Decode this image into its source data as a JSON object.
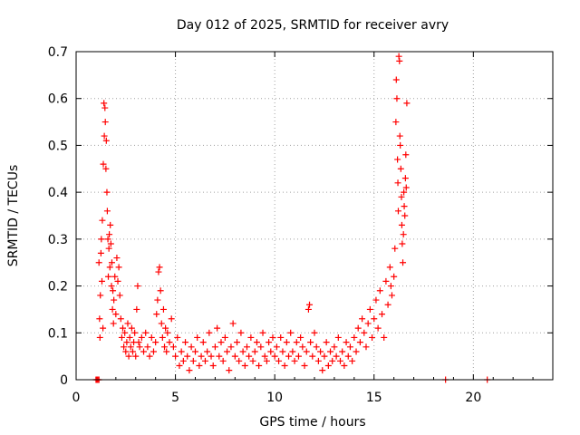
{
  "chart_data": {
    "type": "scatter",
    "title": "Day 012 of 2025, SRMTID for receiver avry",
    "xlabel": "GPS time / hours",
    "ylabel": "SRMTID / TECUs",
    "xlim": [
      0,
      24
    ],
    "ylim": [
      0,
      0.7
    ],
    "xticks": [
      0,
      5,
      10,
      15,
      20
    ],
    "xtick_labels": [
      "0",
      "5",
      "10",
      "15",
      "20"
    ],
    "yticks": [
      0,
      0.1,
      0.2,
      0.3,
      0.4,
      0.5,
      0.6,
      0.7
    ],
    "ytick_labels": [
      "0",
      "0.1",
      "0.2",
      "0.3",
      "0.4",
      "0.5",
      "0.6",
      "0.7"
    ],
    "grid": true,
    "marker": "plus",
    "series": [
      {
        "name": "SRMTID",
        "color": "#ff0000",
        "points": [
          [
            1.0,
            0.0
          ],
          [
            1.05,
            0.0
          ],
          [
            1.1,
            0.0
          ],
          [
            1.15,
            0.0
          ],
          [
            1.15,
            0.25
          ],
          [
            1.18,
            0.13
          ],
          [
            1.2,
            0.09
          ],
          [
            1.22,
            0.18
          ],
          [
            1.25,
            0.27
          ],
          [
            1.27,
            0.3
          ],
          [
            1.3,
            0.21
          ],
          [
            1.32,
            0.34
          ],
          [
            1.35,
            0.11
          ],
          [
            1.37,
            0.46
          ],
          [
            1.4,
            0.59
          ],
          [
            1.42,
            0.52
          ],
          [
            1.45,
            0.58
          ],
          [
            1.47,
            0.55
          ],
          [
            1.5,
            0.45
          ],
          [
            1.52,
            0.51
          ],
          [
            1.55,
            0.4
          ],
          [
            1.57,
            0.36
          ],
          [
            1.6,
            0.3
          ],
          [
            1.62,
            0.22
          ],
          [
            1.65,
            0.28
          ],
          [
            1.67,
            0.31
          ],
          [
            1.7,
            0.24
          ],
          [
            1.72,
            0.33
          ],
          [
            1.75,
            0.29
          ],
          [
            1.78,
            0.2
          ],
          [
            1.8,
            0.25
          ],
          [
            1.83,
            0.15
          ],
          [
            1.85,
            0.19
          ],
          [
            1.88,
            0.12
          ],
          [
            1.9,
            0.17
          ],
          [
            1.95,
            0.22
          ],
          [
            2.0,
            0.14
          ],
          [
            2.05,
            0.26
          ],
          [
            2.1,
            0.21
          ],
          [
            2.15,
            0.24
          ],
          [
            2.2,
            0.18
          ],
          [
            2.25,
            0.13
          ],
          [
            2.3,
            0.09
          ],
          [
            2.35,
            0.11
          ],
          [
            2.4,
            0.07
          ],
          [
            2.45,
            0.1
          ],
          [
            2.5,
            0.06
          ],
          [
            2.55,
            0.08
          ],
          [
            2.6,
            0.12
          ],
          [
            2.65,
            0.05
          ],
          [
            2.7,
            0.09
          ],
          [
            2.75,
            0.07
          ],
          [
            2.8,
            0.11
          ],
          [
            2.85,
            0.06
          ],
          [
            2.9,
            0.08
          ],
          [
            2.95,
            0.1
          ],
          [
            3.0,
            0.05
          ],
          [
            3.05,
            0.15
          ],
          [
            3.1,
            0.2
          ],
          [
            3.15,
            0.08
          ],
          [
            3.2,
            0.07
          ],
          [
            3.3,
            0.09
          ],
          [
            3.4,
            0.06
          ],
          [
            3.5,
            0.1
          ],
          [
            3.6,
            0.07
          ],
          [
            3.7,
            0.05
          ],
          [
            3.8,
            0.09
          ],
          [
            3.9,
            0.06
          ],
          [
            4.0,
            0.08
          ],
          [
            4.05,
            0.14
          ],
          [
            4.1,
            0.17
          ],
          [
            4.15,
            0.23
          ],
          [
            4.2,
            0.24
          ],
          [
            4.25,
            0.19
          ],
          [
            4.3,
            0.12
          ],
          [
            4.35,
            0.09
          ],
          [
            4.4,
            0.15
          ],
          [
            4.45,
            0.07
          ],
          [
            4.5,
            0.11
          ],
          [
            4.55,
            0.06
          ],
          [
            4.6,
            0.1
          ],
          [
            4.7,
            0.08
          ],
          [
            4.8,
            0.13
          ],
          [
            4.9,
            0.07
          ],
          [
            5.0,
            0.05
          ],
          [
            5.1,
            0.09
          ],
          [
            5.2,
            0.03
          ],
          [
            5.3,
            0.06
          ],
          [
            5.4,
            0.04
          ],
          [
            5.5,
            0.08
          ],
          [
            5.6,
            0.05
          ],
          [
            5.7,
            0.02
          ],
          [
            5.8,
            0.07
          ],
          [
            5.9,
            0.04
          ],
          [
            6.0,
            0.06
          ],
          [
            6.1,
            0.09
          ],
          [
            6.2,
            0.03
          ],
          [
            6.3,
            0.05
          ],
          [
            6.4,
            0.08
          ],
          [
            6.5,
            0.04
          ],
          [
            6.6,
            0.06
          ],
          [
            6.7,
            0.1
          ],
          [
            6.8,
            0.05
          ],
          [
            6.9,
            0.03
          ],
          [
            7.0,
            0.07
          ],
          [
            7.1,
            0.11
          ],
          [
            7.2,
            0.05
          ],
          [
            7.3,
            0.08
          ],
          [
            7.4,
            0.04
          ],
          [
            7.5,
            0.09
          ],
          [
            7.6,
            0.06
          ],
          [
            7.7,
            0.02
          ],
          [
            7.8,
            0.07
          ],
          [
            7.9,
            0.12
          ],
          [
            8.0,
            0.05
          ],
          [
            8.1,
            0.08
          ],
          [
            8.2,
            0.04
          ],
          [
            8.3,
            0.1
          ],
          [
            8.4,
            0.06
          ],
          [
            8.5,
            0.03
          ],
          [
            8.6,
            0.07
          ],
          [
            8.7,
            0.05
          ],
          [
            8.8,
            0.09
          ],
          [
            8.9,
            0.04
          ],
          [
            9.0,
            0.06
          ],
          [
            9.1,
            0.08
          ],
          [
            9.2,
            0.03
          ],
          [
            9.3,
            0.07
          ],
          [
            9.4,
            0.1
          ],
          [
            9.5,
            0.05
          ],
          [
            9.6,
            0.04
          ],
          [
            9.7,
            0.08
          ],
          [
            9.8,
            0.06
          ],
          [
            9.9,
            0.09
          ],
          [
            10.0,
            0.05
          ],
          [
            10.1,
            0.07
          ],
          [
            10.2,
            0.04
          ],
          [
            10.3,
            0.09
          ],
          [
            10.4,
            0.06
          ],
          [
            10.5,
            0.03
          ],
          [
            10.6,
            0.08
          ],
          [
            10.7,
            0.05
          ],
          [
            10.8,
            0.1
          ],
          [
            10.9,
            0.06
          ],
          [
            11.0,
            0.04
          ],
          [
            11.1,
            0.08
          ],
          [
            11.2,
            0.05
          ],
          [
            11.3,
            0.09
          ],
          [
            11.4,
            0.07
          ],
          [
            11.5,
            0.03
          ],
          [
            11.6,
            0.06
          ],
          [
            11.7,
            0.15
          ],
          [
            11.75,
            0.16
          ],
          [
            11.8,
            0.08
          ],
          [
            11.9,
            0.05
          ],
          [
            12.0,
            0.1
          ],
          [
            12.1,
            0.07
          ],
          [
            12.2,
            0.04
          ],
          [
            12.3,
            0.06
          ],
          [
            12.4,
            0.02
          ],
          [
            12.5,
            0.05
          ],
          [
            12.6,
            0.08
          ],
          [
            12.7,
            0.03
          ],
          [
            12.8,
            0.06
          ],
          [
            12.9,
            0.04
          ],
          [
            13.0,
            0.07
          ],
          [
            13.1,
            0.05
          ],
          [
            13.2,
            0.09
          ],
          [
            13.3,
            0.04
          ],
          [
            13.4,
            0.06
          ],
          [
            13.5,
            0.03
          ],
          [
            13.6,
            0.08
          ],
          [
            13.7,
            0.05
          ],
          [
            13.8,
            0.07
          ],
          [
            13.9,
            0.04
          ],
          [
            14.0,
            0.09
          ],
          [
            14.1,
            0.06
          ],
          [
            14.2,
            0.11
          ],
          [
            14.3,
            0.08
          ],
          [
            14.4,
            0.13
          ],
          [
            14.5,
            0.1
          ],
          [
            14.6,
            0.07
          ],
          [
            14.7,
            0.12
          ],
          [
            14.8,
            0.15
          ],
          [
            14.9,
            0.09
          ],
          [
            15.0,
            0.13
          ],
          [
            15.1,
            0.17
          ],
          [
            15.2,
            0.11
          ],
          [
            15.3,
            0.19
          ],
          [
            15.4,
            0.14
          ],
          [
            15.5,
            0.09
          ],
          [
            15.6,
            0.21
          ],
          [
            15.7,
            0.16
          ],
          [
            15.8,
            0.24
          ],
          [
            15.85,
            0.2
          ],
          [
            15.9,
            0.18
          ],
          [
            16.0,
            0.22
          ],
          [
            16.05,
            0.28
          ],
          [
            16.1,
            0.55
          ],
          [
            16.12,
            0.64
          ],
          [
            16.15,
            0.6
          ],
          [
            16.18,
            0.47
          ],
          [
            16.2,
            0.42
          ],
          [
            16.22,
            0.36
          ],
          [
            16.25,
            0.69
          ],
          [
            16.28,
            0.68
          ],
          [
            16.3,
            0.52
          ],
          [
            16.32,
            0.5
          ],
          [
            16.35,
            0.45
          ],
          [
            16.38,
            0.39
          ],
          [
            16.4,
            0.33
          ],
          [
            16.42,
            0.29
          ],
          [
            16.45,
            0.25
          ],
          [
            16.48,
            0.31
          ],
          [
            16.5,
            0.4
          ],
          [
            16.52,
            0.37
          ],
          [
            16.55,
            0.35
          ],
          [
            16.58,
            0.43
          ],
          [
            16.6,
            0.48
          ],
          [
            16.62,
            0.41
          ],
          [
            16.65,
            0.59
          ],
          [
            18.6,
            0.0
          ],
          [
            20.7,
            0.0
          ]
        ]
      }
    ]
  }
}
